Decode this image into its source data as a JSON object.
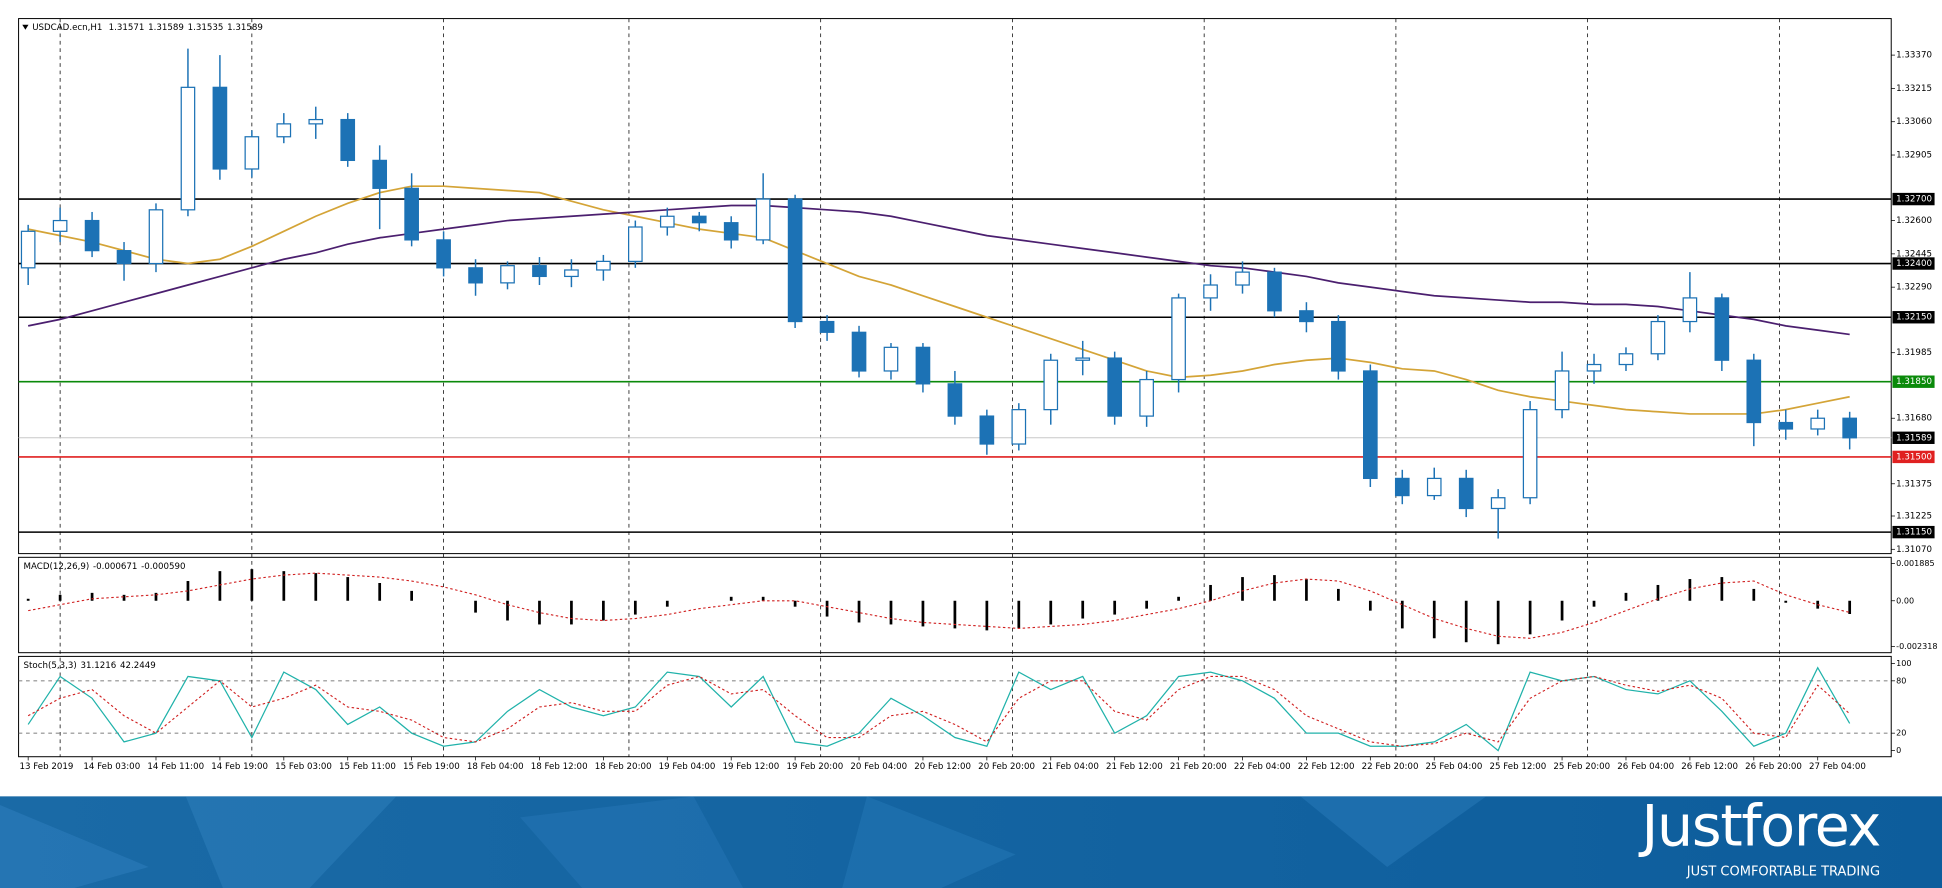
{
  "chart_data": [
    {
      "type": "candlestick",
      "title": "USDCAD.ecn,H1",
      "header_values": [
        1.31571,
        1.31589,
        1.31535,
        1.31589
      ],
      "xlim": [
        -0.3,
        58.3
      ],
      "xticks": [
        {
          "value": 0,
          "label": "13 Feb 2019"
        },
        {
          "value": 2,
          "label": "14 Feb 03:00"
        },
        {
          "value": 4,
          "label": "14 Feb 11:00"
        },
        {
          "value": 6,
          "label": "14 Feb 19:00"
        },
        {
          "value": 8,
          "label": "15 Feb 03:00"
        },
        {
          "value": 10,
          "label": "15 Feb 11:00"
        },
        {
          "value": 12,
          "label": "15 Feb 19:00"
        },
        {
          "value": 14,
          "label": "18 Feb 04:00"
        },
        {
          "value": 16,
          "label": "18 Feb 12:00"
        },
        {
          "value": 18,
          "label": "18 Feb 20:00"
        },
        {
          "value": 20,
          "label": "19 Feb 04:00"
        },
        {
          "value": 22,
          "label": "19 Feb 12:00"
        },
        {
          "value": 24,
          "label": "19 Feb 20:00"
        },
        {
          "value": 26,
          "label": "20 Feb 04:00"
        },
        {
          "value": 28,
          "label": "20 Feb 12:00"
        },
        {
          "value": 30,
          "label": "20 Feb 20:00"
        },
        {
          "value": 32,
          "label": "21 Feb 04:00"
        },
        {
          "value": 34,
          "label": "21 Feb 12:00"
        },
        {
          "value": 36,
          "label": "21 Feb 20:00"
        },
        {
          "value": 38,
          "label": "22 Feb 04:00"
        },
        {
          "value": 40,
          "label": "22 Feb 12:00"
        },
        {
          "value": 42,
          "label": "22 Feb 20:00"
        },
        {
          "value": 44,
          "label": "25 Feb 04:00"
        },
        {
          "value": 46,
          "label": "25 Feb 12:00"
        },
        {
          "value": 48,
          "label": "25 Feb 20:00"
        },
        {
          "value": 50,
          "label": "26 Feb 04:00"
        },
        {
          "value": 52,
          "label": "26 Feb 12:00"
        },
        {
          "value": 54,
          "label": "26 Feb 20:00"
        },
        {
          "value": 56,
          "label": "27 Feb 04:00"
        }
      ],
      "day_lines": [
        1,
        7,
        13,
        18.8,
        24.8,
        30.8,
        36.8,
        42.8,
        48.8,
        54.8
      ],
      "ylim": [
        1.3105,
        1.3354
      ],
      "yticks": [
        {
          "value": 1.3337,
          "label": "1.33370"
        },
        1.33215,
        {
          "value": 1.3306,
          "label": "1.33060"
        },
        1.32905,
        {
          "value": 1.326,
          "label": "1.32600"
        },
        1.32445,
        {
          "value": 1.3229,
          "label": "1.32290"
        },
        1.31985,
        {
          "value": 1.3168,
          "label": "1.31680"
        },
        1.31375,
        1.31225,
        {
          "value": 1.3107,
          "label": "1.31070"
        }
      ],
      "open": [
        1.3238,
        1.3255,
        1.326,
        1.3246,
        1.324,
        1.3265,
        1.3322,
        1.3284,
        1.3299,
        1.3305,
        1.3307,
        1.3288,
        1.3275,
        1.3251,
        1.3238,
        1.3231,
        1.3239,
        1.3234,
        1.3237,
        1.3241,
        1.3257,
        1.3262,
        1.3259,
        1.3251,
        1.327,
        1.3213,
        1.3208,
        1.319,
        1.3201,
        1.3184,
        1.3169,
        1.3156,
        1.3172,
        1.3195,
        1.3196,
        1.3169,
        1.3186,
        1.3224,
        1.323,
        1.3236,
        1.3218,
        1.3213,
        1.319,
        1.314,
        1.3132,
        1.314,
        1.3126,
        1.3131,
        1.3172,
        1.319,
        1.3193,
        1.3198,
        1.3213,
        1.3224,
        1.3195,
        1.3166,
        1.3163,
        1.3168
      ],
      "high": [
        1.3258,
        1.3266,
        1.3264,
        1.325,
        1.3268,
        1.334,
        1.3337,
        1.3302,
        1.331,
        1.3313,
        1.331,
        1.3295,
        1.3282,
        1.3255,
        1.3242,
        1.3241,
        1.3243,
        1.3242,
        1.3244,
        1.326,
        1.3266,
        1.3264,
        1.3262,
        1.3282,
        1.3272,
        1.3216,
        1.3211,
        1.3203,
        1.3203,
        1.319,
        1.3172,
        1.3175,
        1.3198,
        1.3204,
        1.3199,
        1.319,
        1.3226,
        1.3235,
        1.3241,
        1.3238,
        1.3222,
        1.3216,
        1.3193,
        1.3144,
        1.3145,
        1.3144,
        1.3135,
        1.3176,
        1.3199,
        1.3198,
        1.3201,
        1.3216,
        1.3236,
        1.3226,
        1.3198,
        1.3172,
        1.3172,
        1.3171
      ],
      "low": [
        1.323,
        1.325,
        1.3243,
        1.3232,
        1.3236,
        1.3262,
        1.3279,
        1.328,
        1.3296,
        1.3298,
        1.3285,
        1.3256,
        1.3248,
        1.3234,
        1.3225,
        1.3228,
        1.323,
        1.3229,
        1.3232,
        1.3238,
        1.3253,
        1.3255,
        1.3247,
        1.3249,
        1.321,
        1.3204,
        1.3187,
        1.3186,
        1.318,
        1.3165,
        1.3151,
        1.3153,
        1.3165,
        1.3188,
        1.3165,
        1.3164,
        1.318,
        1.3218,
        1.3226,
        1.3215,
        1.3208,
        1.3186,
        1.3136,
        1.3128,
        1.313,
        1.3122,
        1.3112,
        1.3128,
        1.3168,
        1.3184,
        1.319,
        1.3195,
        1.3208,
        1.319,
        1.3155,
        1.3158,
        1.316,
        1.31535
      ],
      "close": [
        1.3255,
        1.326,
        1.3246,
        1.324,
        1.3265,
        1.3322,
        1.3284,
        1.3299,
        1.3305,
        1.3307,
        1.3288,
        1.3275,
        1.3251,
        1.3238,
        1.3231,
        1.3239,
        1.3234,
        1.3237,
        1.3241,
        1.3257,
        1.3262,
        1.3259,
        1.3251,
        1.327,
        1.3213,
        1.3208,
        1.319,
        1.3201,
        1.3184,
        1.3169,
        1.3156,
        1.3172,
        1.3195,
        1.3196,
        1.3169,
        1.3186,
        1.3224,
        1.323,
        1.3236,
        1.3218,
        1.3213,
        1.319,
        1.314,
        1.3132,
        1.314,
        1.3126,
        1.3131,
        1.3172,
        1.319,
        1.3193,
        1.3198,
        1.3213,
        1.3224,
        1.3195,
        1.3166,
        1.3163,
        1.3168,
        1.31589
      ],
      "up_color": "#ffffff",
      "down_color": "#1c72b5",
      "wick_color": "#1c72b5",
      "lines": [
        {
          "color": "#d4a437",
          "values": [
            1.3256,
            1.3253,
            1.325,
            1.3246,
            1.3242,
            1.324,
            1.3242,
            1.3248,
            1.3255,
            1.3262,
            1.3268,
            1.3273,
            1.3276,
            1.3276,
            1.3275,
            1.3274,
            1.3273,
            1.3269,
            1.3265,
            1.3262,
            1.3259,
            1.3256,
            1.3254,
            1.3252,
            1.3246,
            1.324,
            1.3234,
            1.323,
            1.3225,
            1.322,
            1.3215,
            1.321,
            1.3205,
            1.32,
            1.3195,
            1.319,
            1.3187,
            1.3188,
            1.319,
            1.3193,
            1.3195,
            1.3196,
            1.3194,
            1.3191,
            1.319,
            1.3186,
            1.3181,
            1.3178,
            1.3176,
            1.3174,
            1.3172,
            1.3171,
            1.317,
            1.317,
            1.317,
            1.3172,
            1.3175,
            1.3178
          ]
        },
        {
          "color": "#4b1f6f",
          "values": [
            1.3211,
            1.3214,
            1.3218,
            1.3222,
            1.3226,
            1.323,
            1.3234,
            1.3238,
            1.3242,
            1.3245,
            1.3249,
            1.3252,
            1.3254,
            1.3256,
            1.3258,
            1.326,
            1.3261,
            1.3262,
            1.3263,
            1.3264,
            1.3265,
            1.3266,
            1.3267,
            1.3267,
            1.3266,
            1.3265,
            1.3264,
            1.3262,
            1.3259,
            1.3256,
            1.3253,
            1.3251,
            1.3249,
            1.3247,
            1.3245,
            1.3243,
            1.3241,
            1.3239,
            1.3238,
            1.3236,
            1.3234,
            1.3231,
            1.3229,
            1.3227,
            1.3225,
            1.3224,
            1.3223,
            1.3222,
            1.3222,
            1.3221,
            1.3221,
            1.322,
            1.3218,
            1.3216,
            1.3214,
            1.3211,
            1.3209,
            1.3207
          ]
        }
      ],
      "levels": [
        {
          "value": 1.327,
          "label": "1.32700",
          "color": "#000000"
        },
        {
          "value": 1.324,
          "label": "1.32400",
          "color": "#000000"
        },
        {
          "value": 1.3215,
          "label": "1.32150",
          "color": "#000000"
        },
        {
          "value": 1.3185,
          "label": "1.31850",
          "color": "#0a8a0a"
        },
        {
          "value": 1.315,
          "label": "1.31500",
          "color": "#e02020"
        },
        {
          "value": 1.3115,
          "label": "1.31150",
          "color": "#000000"
        }
      ],
      "current_price": 1.31589,
      "current_color": "#c8c8c8"
    },
    {
      "type": "macd",
      "title": "MACD(12,26,9)",
      "readout": [
        -0.000671,
        {
          "value": -0.00059,
          "label": "-0.000590"
        }
      ],
      "ylim": [
        -0.00263,
        0.0022
      ],
      "yticks": [
        0.001885,
        {
          "value": 0,
          "label": "0.00"
        },
        -0.002318
      ],
      "color": "#000000",
      "values": [
        0.0001,
        0.0003,
        0.0004,
        0.0003,
        0.0004,
        0.001,
        0.0015,
        0.0016,
        0.0015,
        0.0014,
        0.0012,
        0.0009,
        0.0005,
        0.0,
        -0.0006,
        -0.001,
        -0.0012,
        -0.0012,
        -0.001,
        -0.0007,
        -0.0003,
        0.0,
        0.0002,
        0.0002,
        -0.0003,
        -0.0008,
        -0.0011,
        -0.0012,
        -0.0013,
        -0.0014,
        -0.0015,
        -0.0014,
        -0.0012,
        -0.0009,
        -0.0007,
        -0.0004,
        0.0002,
        0.0008,
        0.0012,
        0.0013,
        0.0011,
        0.0006,
        -0.0005,
        -0.0014,
        -0.0019,
        -0.0021,
        -0.0022,
        -0.0017,
        -0.001,
        -0.0003,
        0.0004,
        0.0008,
        0.0011,
        0.0012,
        0.0006,
        -0.0001,
        -0.0004,
        -0.000671
      ],
      "signal": {
        "color": "#d02020",
        "values": [
          -0.0005,
          -0.0002,
          0.0001,
          0.0002,
          0.0003,
          0.0005,
          0.0008,
          0.0011,
          0.0013,
          0.0014,
          0.0013,
          0.0012,
          0.001,
          0.0007,
          0.0003,
          -0.0002,
          -0.0006,
          -0.0009,
          -0.001,
          -0.0009,
          -0.0007,
          -0.0004,
          -0.0002,
          0.0,
          0.0,
          -0.0003,
          -0.0006,
          -0.0009,
          -0.0011,
          -0.0012,
          -0.0013,
          -0.0014,
          -0.0013,
          -0.0012,
          -0.001,
          -0.0007,
          -0.0004,
          0.0,
          0.0005,
          0.0009,
          0.0011,
          0.001,
          0.0005,
          -0.0002,
          -0.0009,
          -0.0014,
          -0.0018,
          -0.0019,
          -0.0016,
          -0.0011,
          -0.0005,
          0.0001,
          0.0006,
          0.0009,
          0.001,
          0.0003,
          -0.0002,
          -0.00059
        ]
      }
    },
    {
      "type": "stochastic",
      "title": "Stoch(5,3,3)",
      "readout": [
        31.1216,
        42.2449
      ],
      "ylim": [
        -7,
        108
      ],
      "yticks": [
        100,
        80,
        20,
        0
      ],
      "levels": [
        80,
        20
      ],
      "main": {
        "color": "#20b2aa",
        "values": [
          30,
          85,
          60,
          10,
          20,
          85,
          80,
          15,
          90,
          70,
          30,
          50,
          20,
          5,
          10,
          45,
          70,
          50,
          40,
          50,
          90,
          85,
          50,
          85,
          10,
          5,
          20,
          60,
          40,
          15,
          5,
          90,
          70,
          85,
          20,
          40,
          85,
          90,
          80,
          60,
          20,
          20,
          5,
          5,
          10,
          30,
          0,
          90,
          80,
          85,
          70,
          65,
          80,
          45,
          5,
          20,
          95,
          31.1216
        ]
      },
      "signal": {
        "color": "#d02020",
        "values": [
          40,
          60,
          70,
          40,
          20,
          50,
          80,
          50,
          60,
          75,
          50,
          45,
          35,
          15,
          10,
          25,
          50,
          55,
          45,
          45,
          75,
          85,
          65,
          70,
          40,
          15,
          15,
          40,
          45,
          30,
          10,
          60,
          80,
          80,
          45,
          35,
          70,
          85,
          85,
          70,
          40,
          25,
          10,
          5,
          8,
          20,
          10,
          60,
          80,
          85,
          75,
          68,
          75,
          60,
          20,
          15,
          75,
          42.2449
        ]
      }
    }
  ],
  "footer": {
    "brand": "Justforex",
    "slogan": "JUST COMFORTABLE TRADING"
  }
}
